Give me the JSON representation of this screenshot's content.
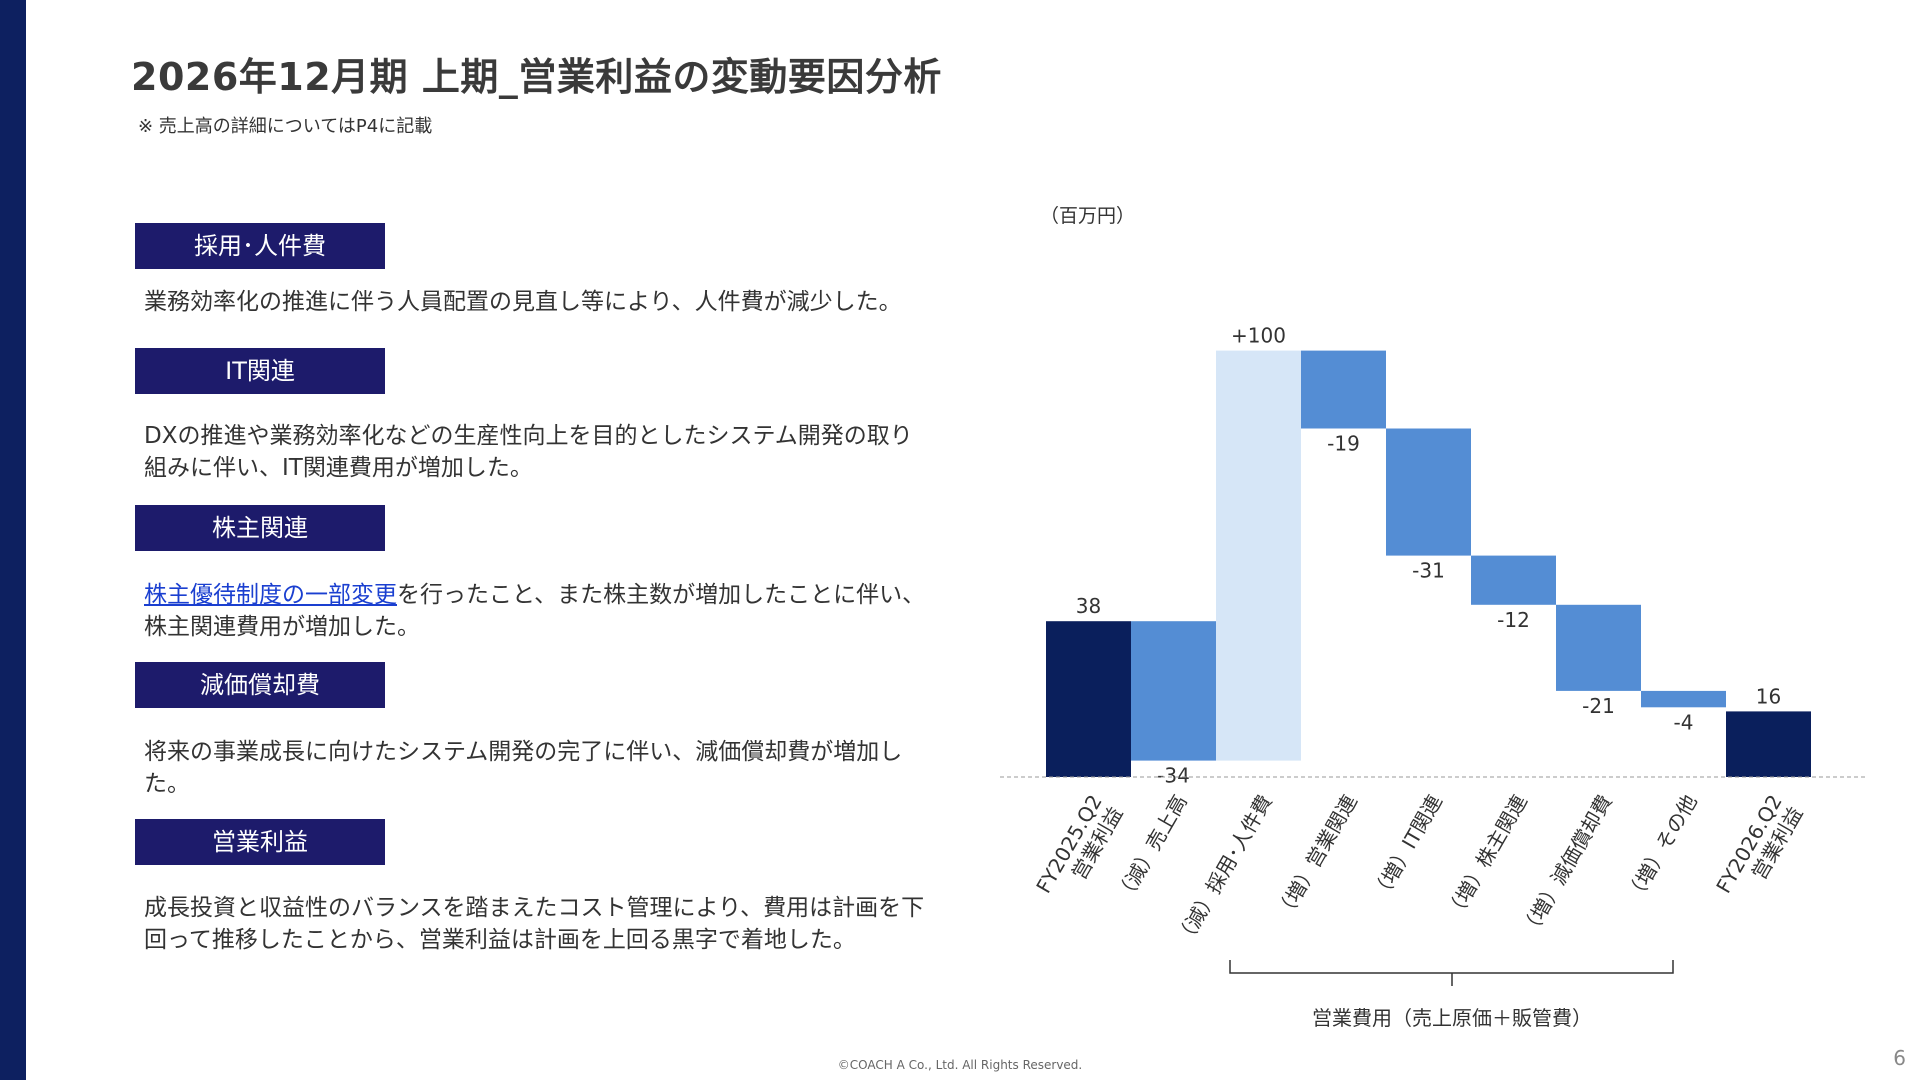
{
  "slide": {
    "title": "2026年12月期 上期_営業利益の変動要因分析",
    "note": "※ 売上高の詳細についてはP4に記載",
    "footer": "©COACH A Co., Ltd. All Rights Reserved.",
    "page_number": "6"
  },
  "sections": [
    {
      "label": "採用･人件費",
      "text": "業務効率化の推進に伴う人員配置の見直し等により、人件費が減少した。"
    },
    {
      "label": "IT関連",
      "text": "DXの推進や業務効率化などの生産性向上を目的としたシステム開発の取り組みに伴い、IT関連費用が増加した。"
    },
    {
      "label": "株主関連",
      "link_text": "株主優待制度の一部変更",
      "text": "を行ったこと、また株主数が増加したことに伴い、株主関連費用が増加した。"
    },
    {
      "label": "減価償却費",
      "text": "将来の事業成長に向けたシステム開発の完了に伴い、減価償却費が増加した。"
    },
    {
      "label": "営業利益",
      "text": "成長投資と収益性のバランスを踏まえたコスト管理により、費用は計画を下回って推移したことから、営業利益は計画を上回る黒字で着地した。"
    }
  ],
  "chart_data": {
    "type": "bar",
    "subtype": "waterfall",
    "unit_label": "（百万円）",
    "categories": [
      "FY2025.Q2\n営業利益",
      "（減）売上高",
      "（減）採用･人件費",
      "（増）営業関連",
      "（増）IT関連",
      "（増）株主関連",
      "（増）減価償却費",
      "（増）その他",
      "FY2026.Q2\n営業利益"
    ],
    "values": [
      38,
      -34,
      100,
      -19,
      -31,
      -12,
      -21,
      -4,
      16
    ],
    "value_labels": [
      "38",
      "-34",
      "+100",
      "-19",
      "-31",
      "-12",
      "-21",
      "-4",
      "16"
    ],
    "kinds": [
      "total",
      "delta",
      "delta",
      "delta",
      "delta",
      "delta",
      "delta",
      "delta",
      "total"
    ],
    "colors": {
      "total": "#0a1f5c",
      "decrease": "#548dd4",
      "increase": "#d6e6f7"
    },
    "bracket_label": "営業費用（売上原価＋販管費）",
    "baseline": "dashed"
  }
}
